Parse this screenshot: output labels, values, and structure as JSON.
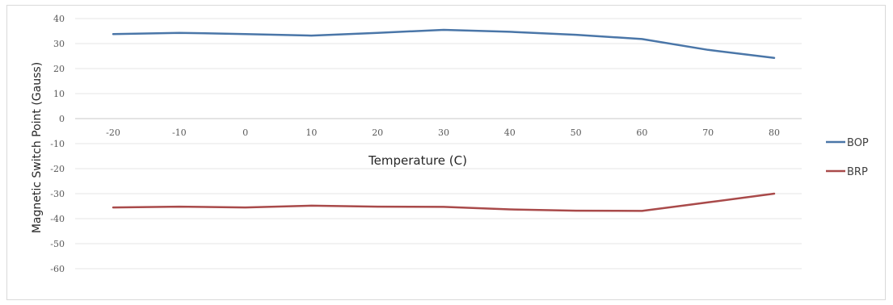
{
  "chart_data": {
    "type": "line",
    "title": "",
    "xlabel": "Temperature (C)",
    "ylabel": "Magnetic  Switch Point (Gauss)",
    "x": [
      -20,
      -10,
      0,
      10,
      20,
      30,
      40,
      50,
      60,
      70,
      80
    ],
    "x_tick_labels": [
      "-20",
      "-10",
      "0",
      "10",
      "20",
      "30",
      "40",
      "50",
      "60",
      "70",
      "80"
    ],
    "y_tick_labels": [
      "40",
      "30",
      "20",
      "10",
      "0",
      "-10",
      "-20",
      "-30",
      "-40",
      "-50",
      "-60"
    ],
    "ylim": [
      -60,
      40
    ],
    "grid": true,
    "legend_position": "right",
    "series": [
      {
        "name": "BOP",
        "color": "#4a76a8",
        "values": [
          33.8,
          34.3,
          33.8,
          33.2,
          34.3,
          35.5,
          34.7,
          33.5,
          31.8,
          27.5,
          24.3
        ]
      },
      {
        "name": "BRP",
        "color": "#a94a4a",
        "values": [
          -35.5,
          -35.2,
          -35.5,
          -34.8,
          -35.2,
          -35.3,
          -36.3,
          -36.8,
          -36.9,
          -33.5,
          -30.0
        ]
      }
    ]
  }
}
